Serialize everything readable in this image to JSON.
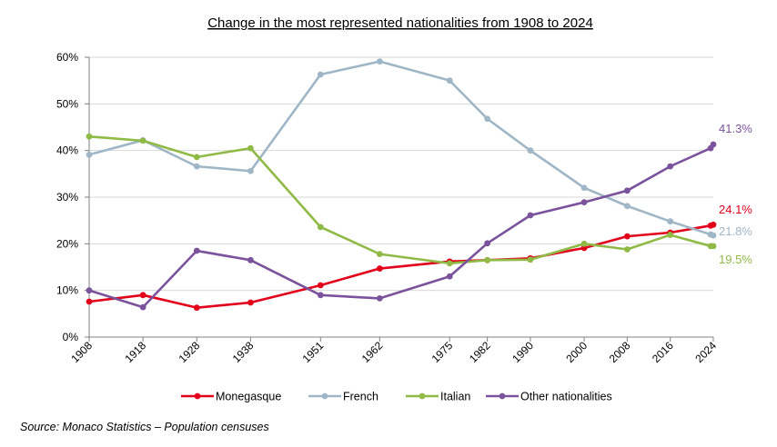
{
  "chart_data": {
    "type": "line",
    "title": "Change in the most represented nationalities from 1908 to 2024",
    "xlabel": "",
    "ylabel": "",
    "x": [
      1908,
      1918,
      1928,
      1938,
      1951,
      1962,
      1975,
      1982,
      1990,
      2000,
      2008,
      2016,
      2024
    ],
    "x_tick_labels": [
      "1908",
      "1918",
      "1928",
      "1938",
      "1951",
      "1962",
      "1975",
      "1982",
      "1990",
      "2000",
      "2008",
      "2016",
      "2024"
    ],
    "ylim": [
      0,
      60
    ],
    "y_ticks": [
      0,
      10,
      20,
      30,
      40,
      50,
      60
    ],
    "y_tick_labels": [
      "0%",
      "10%",
      "20%",
      "30%",
      "40%",
      "50%",
      "60%"
    ],
    "grid": "horizontal",
    "legend_position": "bottom",
    "series": [
      {
        "name": "Monegasque",
        "color": "#e2001a",
        "values": [
          7.6,
          9.0,
          6.3,
          7.4,
          11.1,
          14.7,
          16.2,
          16.5,
          16.9,
          19.1,
          21.6,
          22.4,
          23.9,
          24.1
        ],
        "x": [
          1908,
          1918,
          1928,
          1938,
          1951,
          1962,
          1975,
          1982,
          1990,
          2000,
          2008,
          2016,
          2023.5,
          2024
        ],
        "end_label": "24.1%"
      },
      {
        "name": "French",
        "color": "#9fb6c6",
        "values": [
          39.1,
          42.2,
          36.6,
          35.6,
          56.3,
          59.1,
          55.0,
          46.8,
          40.0,
          32.0,
          28.1,
          24.8,
          22.0,
          21.8
        ],
        "x": [
          1908,
          1918,
          1928,
          1938,
          1951,
          1962,
          1975,
          1982,
          1990,
          2000,
          2008,
          2016,
          2023.5,
          2024
        ],
        "end_label": "21.8%"
      },
      {
        "name": "Italian",
        "color": "#8fba46",
        "values": [
          43.0,
          42.1,
          38.6,
          40.5,
          23.6,
          17.8,
          15.8,
          16.5,
          16.6,
          20.0,
          18.8,
          21.9,
          19.5,
          19.5
        ],
        "x": [
          1908,
          1918,
          1928,
          1938,
          1951,
          1962,
          1975,
          1982,
          1990,
          2000,
          2008,
          2016,
          2023.5,
          2024
        ],
        "end_label": "19.5%"
      },
      {
        "name": "Other nationalities",
        "color": "#7b539c",
        "values": [
          10.0,
          6.4,
          18.5,
          16.5,
          9.0,
          8.3,
          13.0,
          20.1,
          26.1,
          28.9,
          31.4,
          36.6,
          40.5,
          41.3
        ],
        "x": [
          1908,
          1918,
          1928,
          1938,
          1951,
          1962,
          1975,
          1982,
          1990,
          2000,
          2008,
          2016,
          2023.5,
          2024
        ],
        "end_label": "41.3%"
      }
    ]
  },
  "source": "Source: Monaco Statistics – Population censuses"
}
